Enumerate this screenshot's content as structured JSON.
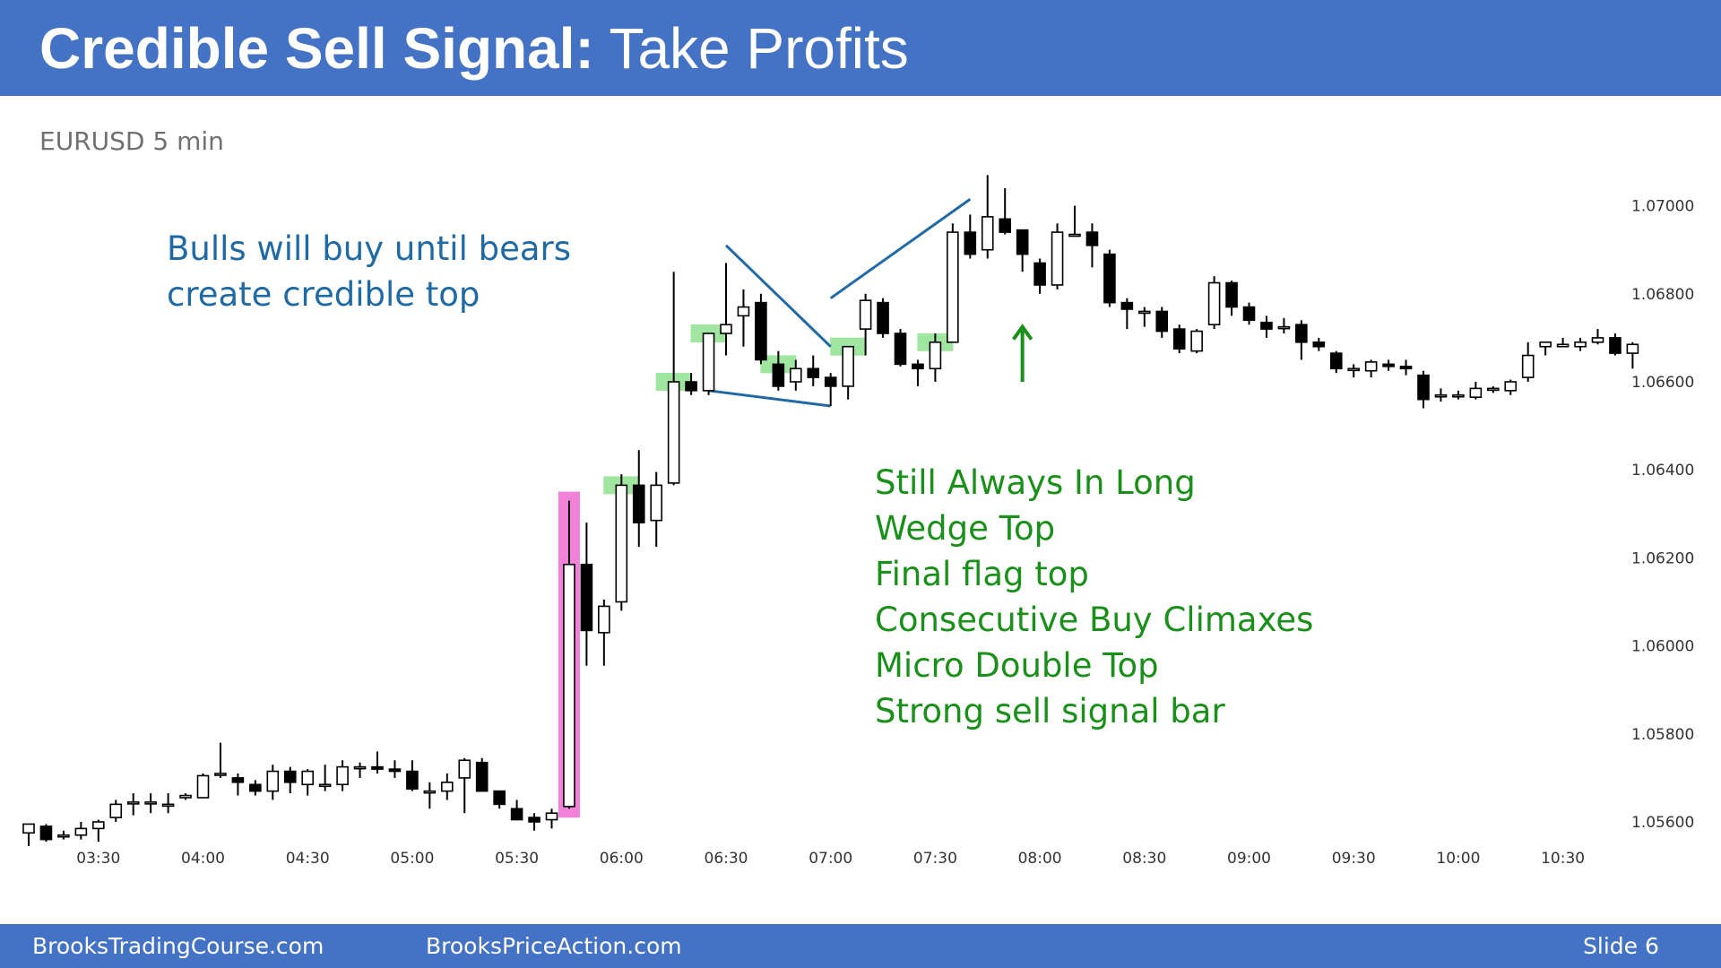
{
  "slide": {
    "title_bold": "Credible Sell Signal:",
    "title_regular": "Take Profits",
    "subtitle": "EURUSD 5 min",
    "footer_left": "BrooksTradingCourse.com",
    "footer_mid": "BrooksPriceAction.com",
    "footer_right": "Slide  6"
  },
  "colors": {
    "header": "#4472c4",
    "annotation_blue": "#1f6aa5",
    "annotation_green": "#1a8f1a",
    "signal_highlight": "#f06cd2",
    "entry_highlight": "#8fe08f",
    "wedge_line": "#1f6aa5"
  },
  "annotations": {
    "bulls_line1": "Bulls will buy until bears",
    "bulls_line2": "create credible top",
    "reasons": [
      "Still Always In Long",
      "Wedge Top",
      "Final flag top",
      "Consecutive Buy Climaxes",
      "Micro Double Top",
      "Strong sell signal bar"
    ]
  },
  "chart_data": {
    "type": "candlestick",
    "symbol": "EURUSD",
    "timeframe": "5 min",
    "ylim": [
      1.0554,
      1.0707
    ],
    "y_ticks": [
      "1.07000",
      "1.06800",
      "1.06600",
      "1.06400",
      "1.06200",
      "1.06000",
      "1.05800",
      "1.05600"
    ],
    "x_ticks": [
      "03:30",
      "04:00",
      "04:30",
      "05:00",
      "05:30",
      "06:00",
      "06:30",
      "07:00",
      "07:30",
      "08:00",
      "08:30",
      "09:00",
      "09:30",
      "10:00",
      "10:30"
    ],
    "x_tick_bar_index": [
      4,
      10,
      16,
      22,
      28,
      34,
      40,
      46,
      52,
      58,
      64,
      70,
      76,
      82,
      88
    ],
    "bars": [
      {
        "o": 1.05575,
        "h": 1.05595,
        "l": 1.05545,
        "c": 1.05595
      },
      {
        "o": 1.0559,
        "h": 1.05595,
        "l": 1.05555,
        "c": 1.0556
      },
      {
        "o": 1.0557,
        "h": 1.0558,
        "l": 1.0556,
        "c": 1.0557
      },
      {
        "o": 1.0557,
        "h": 1.056,
        "l": 1.0556,
        "c": 1.05585
      },
      {
        "o": 1.05585,
        "h": 1.05605,
        "l": 1.05555,
        "c": 1.056
      },
      {
        "o": 1.0561,
        "h": 1.0565,
        "l": 1.056,
        "c": 1.0564
      },
      {
        "o": 1.05645,
        "h": 1.05665,
        "l": 1.05615,
        "c": 1.05645
      },
      {
        "o": 1.05645,
        "h": 1.05665,
        "l": 1.0562,
        "c": 1.05645
      },
      {
        "o": 1.0564,
        "h": 1.05665,
        "l": 1.0562,
        "c": 1.0564
      },
      {
        "o": 1.05655,
        "h": 1.05665,
        "l": 1.0565,
        "c": 1.0566
      },
      {
        "o": 1.05655,
        "h": 1.0571,
        "l": 1.05655,
        "c": 1.05705
      },
      {
        "o": 1.0571,
        "h": 1.0578,
        "l": 1.057,
        "c": 1.0571
      },
      {
        "o": 1.057,
        "h": 1.0571,
        "l": 1.0566,
        "c": 1.0569
      },
      {
        "o": 1.05685,
        "h": 1.05695,
        "l": 1.0566,
        "c": 1.0567
      },
      {
        "o": 1.0567,
        "h": 1.0573,
        "l": 1.0565,
        "c": 1.05715
      },
      {
        "o": 1.05715,
        "h": 1.05725,
        "l": 1.05665,
        "c": 1.0569
      },
      {
        "o": 1.05685,
        "h": 1.0572,
        "l": 1.0566,
        "c": 1.05715
      },
      {
        "o": 1.05685,
        "h": 1.0573,
        "l": 1.0567,
        "c": 1.05685
      },
      {
        "o": 1.05685,
        "h": 1.0574,
        "l": 1.0567,
        "c": 1.05725
      },
      {
        "o": 1.05725,
        "h": 1.05735,
        "l": 1.057,
        "c": 1.05725
      },
      {
        "o": 1.05725,
        "h": 1.0576,
        "l": 1.0571,
        "c": 1.0572
      },
      {
        "o": 1.0572,
        "h": 1.0574,
        "l": 1.057,
        "c": 1.05715
      },
      {
        "o": 1.05715,
        "h": 1.0574,
        "l": 1.0567,
        "c": 1.05675
      },
      {
        "o": 1.0567,
        "h": 1.0569,
        "l": 1.0563,
        "c": 1.0567
      },
      {
        "o": 1.0567,
        "h": 1.0571,
        "l": 1.0565,
        "c": 1.0569
      },
      {
        "o": 1.057,
        "h": 1.05745,
        "l": 1.0562,
        "c": 1.0574
      },
      {
        "o": 1.05735,
        "h": 1.05745,
        "l": 1.0567,
        "c": 1.0567
      },
      {
        "o": 1.0567,
        "h": 1.0567,
        "l": 1.0563,
        "c": 1.0564
      },
      {
        "o": 1.0563,
        "h": 1.0565,
        "l": 1.0561,
        "c": 1.05605
      },
      {
        "o": 1.0561,
        "h": 1.0562,
        "l": 1.0558,
        "c": 1.056
      },
      {
        "o": 1.05605,
        "h": 1.0563,
        "l": 1.05585,
        "c": 1.0562
      },
      {
        "o": 1.05635,
        "h": 1.0633,
        "l": 1.0563,
        "c": 1.06185
      },
      {
        "o": 1.06185,
        "h": 1.0628,
        "l": 1.05955,
        "c": 1.06035
      },
      {
        "o": 1.0603,
        "h": 1.06105,
        "l": 1.05955,
        "c": 1.0609
      },
      {
        "o": 1.061,
        "h": 1.0639,
        "l": 1.0608,
        "c": 1.06365
      },
      {
        "o": 1.06365,
        "h": 1.06445,
        "l": 1.06225,
        "c": 1.0628
      },
      {
        "o": 1.06285,
        "h": 1.06395,
        "l": 1.06225,
        "c": 1.06365
      },
      {
        "o": 1.0637,
        "h": 1.0685,
        "l": 1.06365,
        "c": 1.066
      },
      {
        "o": 1.066,
        "h": 1.0662,
        "l": 1.0657,
        "c": 1.0658
      },
      {
        "o": 1.0658,
        "h": 1.0671,
        "l": 1.0657,
        "c": 1.0671
      },
      {
        "o": 1.0671,
        "h": 1.0687,
        "l": 1.0666,
        "c": 1.0673
      },
      {
        "o": 1.0675,
        "h": 1.0681,
        "l": 1.0668,
        "c": 1.0677
      },
      {
        "o": 1.0678,
        "h": 1.068,
        "l": 1.0664,
        "c": 1.0665
      },
      {
        "o": 1.0664,
        "h": 1.0667,
        "l": 1.0658,
        "c": 1.0659
      },
      {
        "o": 1.066,
        "h": 1.0665,
        "l": 1.0658,
        "c": 1.0663
      },
      {
        "o": 1.0663,
        "h": 1.0666,
        "l": 1.0659,
        "c": 1.0661
      },
      {
        "o": 1.0661,
        "h": 1.0662,
        "l": 1.06545,
        "c": 1.0659
      },
      {
        "o": 1.0659,
        "h": 1.0668,
        "l": 1.0656,
        "c": 1.0668
      },
      {
        "o": 1.0672,
        "h": 1.068,
        "l": 1.0666,
        "c": 1.06785
      },
      {
        "o": 1.0678,
        "h": 1.0679,
        "l": 1.067,
        "c": 1.0671
      },
      {
        "o": 1.0671,
        "h": 1.0672,
        "l": 1.06635,
        "c": 1.0664
      },
      {
        "o": 1.0664,
        "h": 1.0665,
        "l": 1.0659,
        "c": 1.0663
      },
      {
        "o": 1.0663,
        "h": 1.0671,
        "l": 1.066,
        "c": 1.0669
      },
      {
        "o": 1.0669,
        "h": 1.0696,
        "l": 1.0669,
        "c": 1.0694
      },
      {
        "o": 1.0694,
        "h": 1.0698,
        "l": 1.0688,
        "c": 1.0689
      },
      {
        "o": 1.069,
        "h": 1.0707,
        "l": 1.0688,
        "c": 1.06975
      },
      {
        "o": 1.0697,
        "h": 1.0704,
        "l": 1.06935,
        "c": 1.0694
      },
      {
        "o": 1.06945,
        "h": 1.06945,
        "l": 1.0685,
        "c": 1.0689
      },
      {
        "o": 1.0687,
        "h": 1.0688,
        "l": 1.068,
        "c": 1.0682
      },
      {
        "o": 1.0682,
        "h": 1.0696,
        "l": 1.0681,
        "c": 1.0694
      },
      {
        "o": 1.06935,
        "h": 1.07,
        "l": 1.0693,
        "c": 1.06935
      },
      {
        "o": 1.0694,
        "h": 1.0696,
        "l": 1.0686,
        "c": 1.0691
      },
      {
        "o": 1.0689,
        "h": 1.069,
        "l": 1.0677,
        "c": 1.0678
      },
      {
        "o": 1.0678,
        "h": 1.0679,
        "l": 1.0672,
        "c": 1.06765
      },
      {
        "o": 1.0676,
        "h": 1.0677,
        "l": 1.06725,
        "c": 1.0676
      },
      {
        "o": 1.0676,
        "h": 1.0677,
        "l": 1.067,
        "c": 1.06715
      },
      {
        "o": 1.0672,
        "h": 1.0673,
        "l": 1.06665,
        "c": 1.06675
      },
      {
        "o": 1.0667,
        "h": 1.0672,
        "l": 1.06665,
        "c": 1.06715
      },
      {
        "o": 1.0673,
        "h": 1.0684,
        "l": 1.0672,
        "c": 1.06825
      },
      {
        "o": 1.06825,
        "h": 1.0683,
        "l": 1.0675,
        "c": 1.0677
      },
      {
        "o": 1.0677,
        "h": 1.0678,
        "l": 1.0673,
        "c": 1.0674
      },
      {
        "o": 1.06735,
        "h": 1.0675,
        "l": 1.067,
        "c": 1.0672
      },
      {
        "o": 1.06725,
        "h": 1.06745,
        "l": 1.0671,
        "c": 1.06725
      },
      {
        "o": 1.0673,
        "h": 1.0674,
        "l": 1.0665,
        "c": 1.0669
      },
      {
        "o": 1.0669,
        "h": 1.067,
        "l": 1.0667,
        "c": 1.0668
      },
      {
        "o": 1.06665,
        "h": 1.0667,
        "l": 1.0662,
        "c": 1.0663
      },
      {
        "o": 1.0663,
        "h": 1.0664,
        "l": 1.0661,
        "c": 1.0663
      },
      {
        "o": 1.06625,
        "h": 1.0665,
        "l": 1.0661,
        "c": 1.06645
      },
      {
        "o": 1.0664,
        "h": 1.0665,
        "l": 1.06625,
        "c": 1.06635
      },
      {
        "o": 1.06635,
        "h": 1.0665,
        "l": 1.06615,
        "c": 1.0663
      },
      {
        "o": 1.06615,
        "h": 1.06625,
        "l": 1.0654,
        "c": 1.0656
      },
      {
        "o": 1.0657,
        "h": 1.06585,
        "l": 1.06555,
        "c": 1.0657
      },
      {
        "o": 1.0657,
        "h": 1.0658,
        "l": 1.0656,
        "c": 1.0657
      },
      {
        "o": 1.06565,
        "h": 1.066,
        "l": 1.0656,
        "c": 1.06585
      },
      {
        "o": 1.06585,
        "h": 1.0659,
        "l": 1.06575,
        "c": 1.06585
      },
      {
        "o": 1.0658,
        "h": 1.06605,
        "l": 1.0657,
        "c": 1.066
      },
      {
        "o": 1.0661,
        "h": 1.0669,
        "l": 1.066,
        "c": 1.0666
      },
      {
        "o": 1.0668,
        "h": 1.0669,
        "l": 1.0666,
        "c": 1.0669
      },
      {
        "o": 1.0668,
        "h": 1.067,
        "l": 1.0668,
        "c": 1.06685
      },
      {
        "o": 1.0668,
        "h": 1.067,
        "l": 1.0667,
        "c": 1.0669
      },
      {
        "o": 1.0669,
        "h": 1.0672,
        "l": 1.06685,
        "c": 1.067
      },
      {
        "o": 1.067,
        "h": 1.0671,
        "l": 1.0666,
        "c": 1.06665
      },
      {
        "o": 1.06665,
        "h": 1.0669,
        "l": 1.0663,
        "c": 1.06685
      }
    ],
    "highlighted_bars": {
      "signal_bar": 31,
      "entry_bars": [
        34,
        37,
        39,
        43,
        47,
        52
      ]
    },
    "drawn_lines": [
      {
        "name": "wedge-upper-left",
        "points": [
          [
            39,
            1.0658
          ],
          [
            46,
            1.06545
          ]
        ]
      },
      {
        "name": "wedge-left-leg",
        "points": [
          [
            40,
            1.0691
          ],
          [
            46,
            1.0668
          ]
        ]
      },
      {
        "name": "wedge-right-leg",
        "points": [
          [
            46,
            1.0679
          ],
          [
            54,
            1.07015
          ]
        ]
      }
    ],
    "arrow": {
      "bar_index": 57,
      "from": 1.066,
      "to": 1.06725
    }
  }
}
